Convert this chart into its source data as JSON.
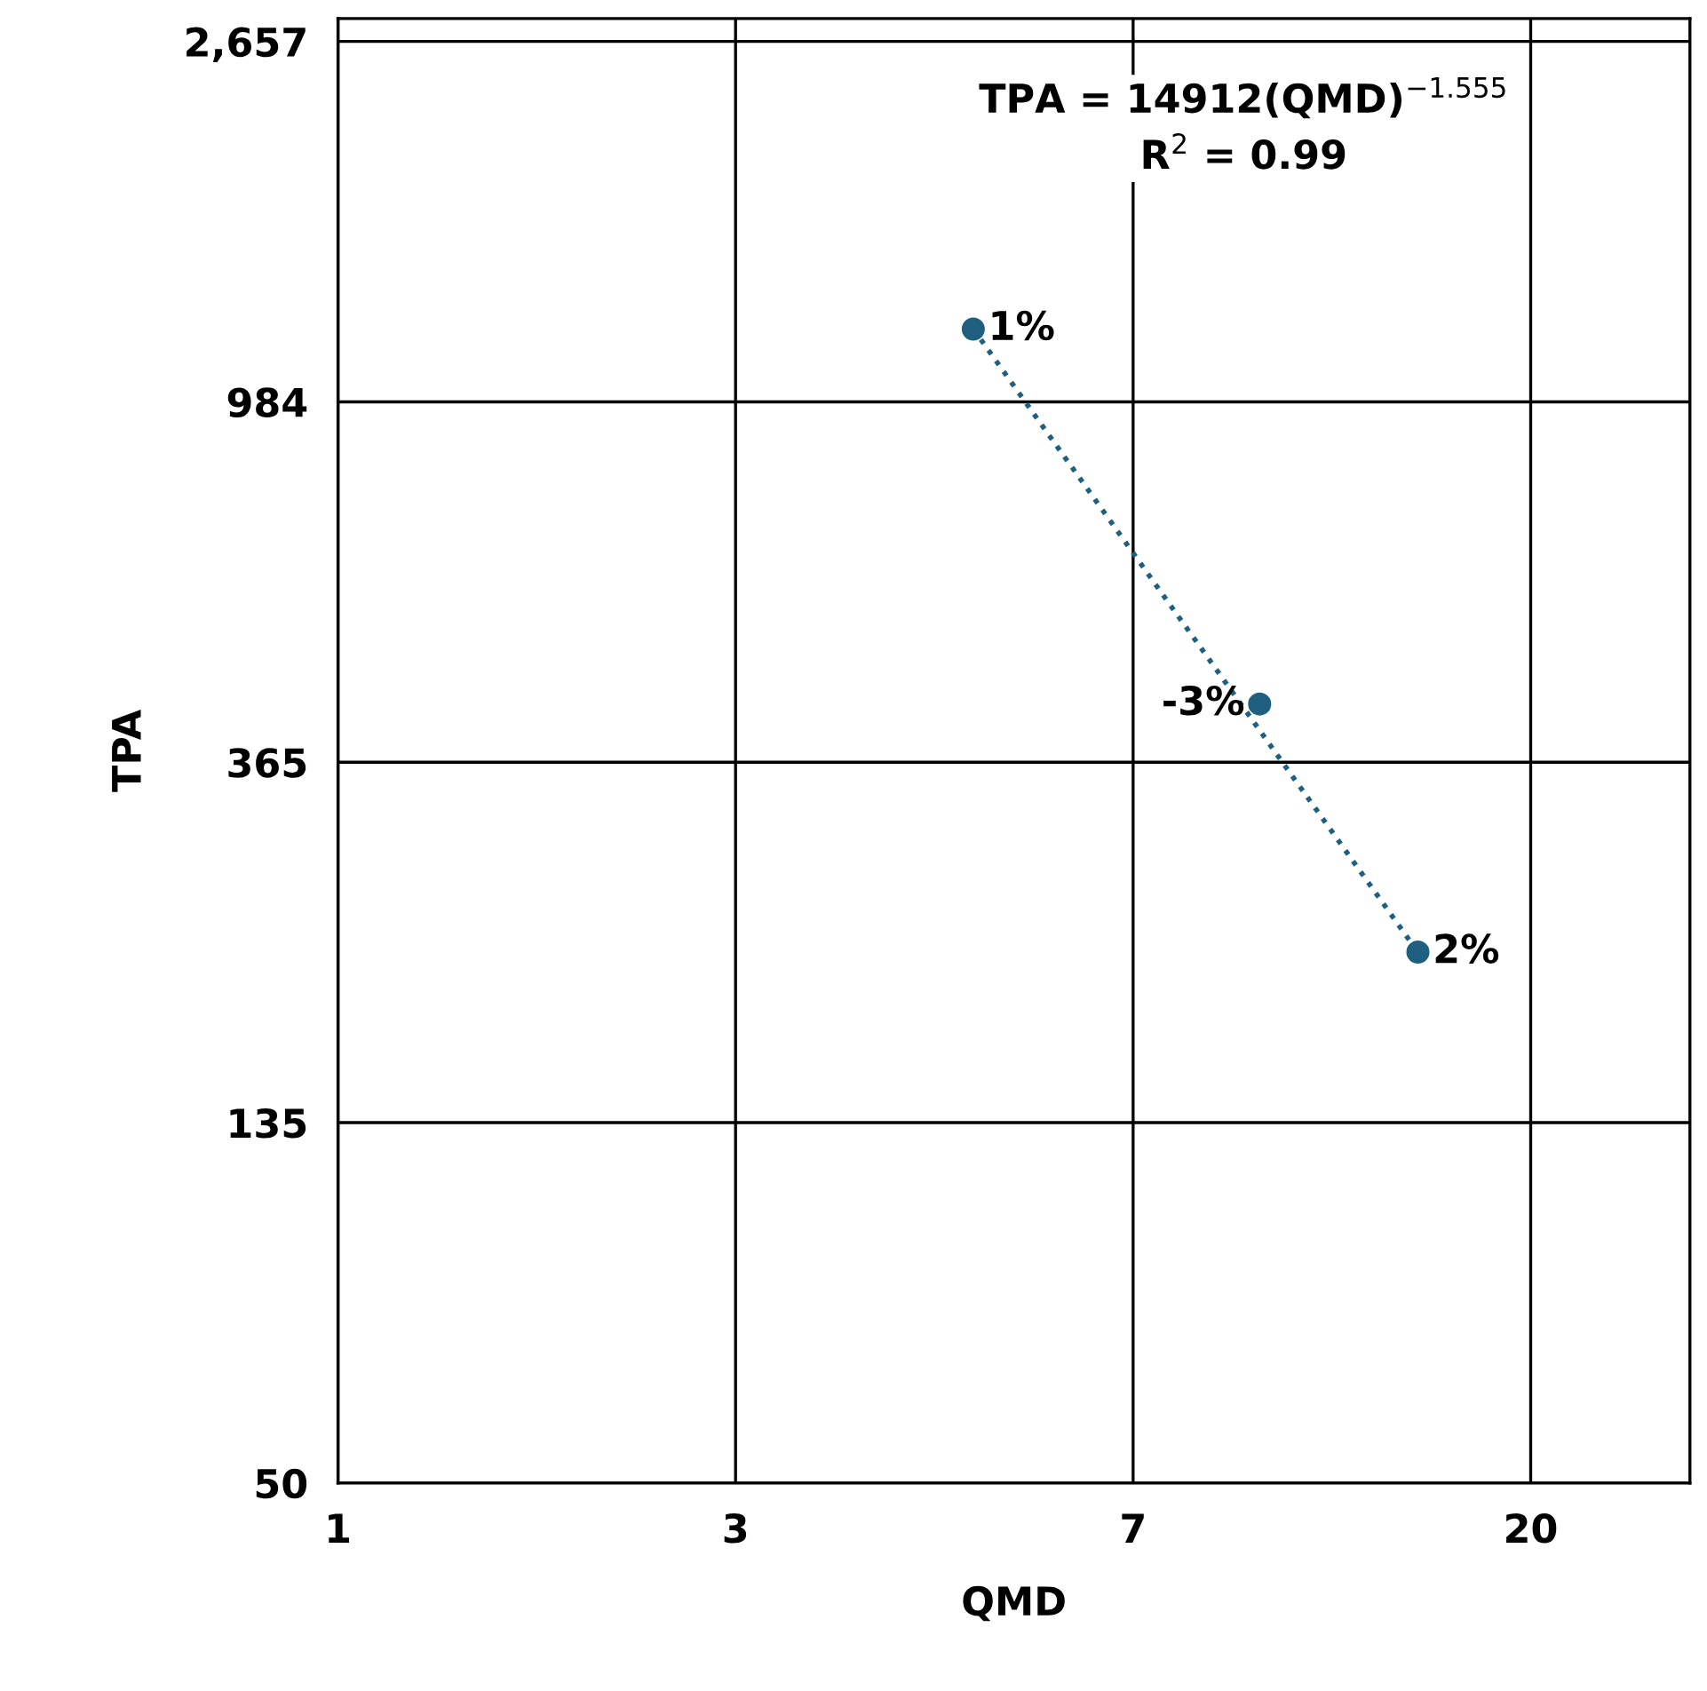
{
  "chart_data": {
    "type": "scatter",
    "xlabel": "QMD",
    "ylabel": "TPA",
    "log": "xy",
    "grid": true,
    "marker": "circle",
    "xlim": [
      1,
      29.3
    ],
    "ylim": [
      50,
      2830
    ],
    "xticks": [
      1,
      {
        "value": 2.7,
        "label": "3"
      },
      {
        "value": 7.29,
        "label": "7"
      },
      {
        "value": 19.683,
        "label": "20"
      }
    ],
    "yticks": [
      50,
      135,
      {
        "value": 364.5,
        "label": "365"
      },
      {
        "value": 984.15,
        "label": "984"
      },
      {
        "value": 2657.2,
        "label": "2,657"
      }
    ],
    "annotations": [
      "TPA = 14912(QMD)$^{−1.555}$\nR$^{2}$ = 0.99",
      {
        "text": "1%",
        "x": 4.89,
        "y": 1203
      },
      {
        "text": "-3%",
        "x": 10.0,
        "y": 428
      },
      {
        "text": "2%",
        "x": 14.85,
        "y": 216
      }
    ],
    "series": [
      {
        "type": "line",
        "x": [
          4.89,
          14.85
        ],
        "values": [
          1203,
          216
        ],
        "color": "#1f5f7f",
        "line_style": "dotted",
        "marker": "none"
      },
      {
        "x": [
          4.89,
          10.0,
          14.85
        ],
        "values": [
          1203,
          428,
          216
        ],
        "color": "#1f5f7f"
      }
    ]
  }
}
